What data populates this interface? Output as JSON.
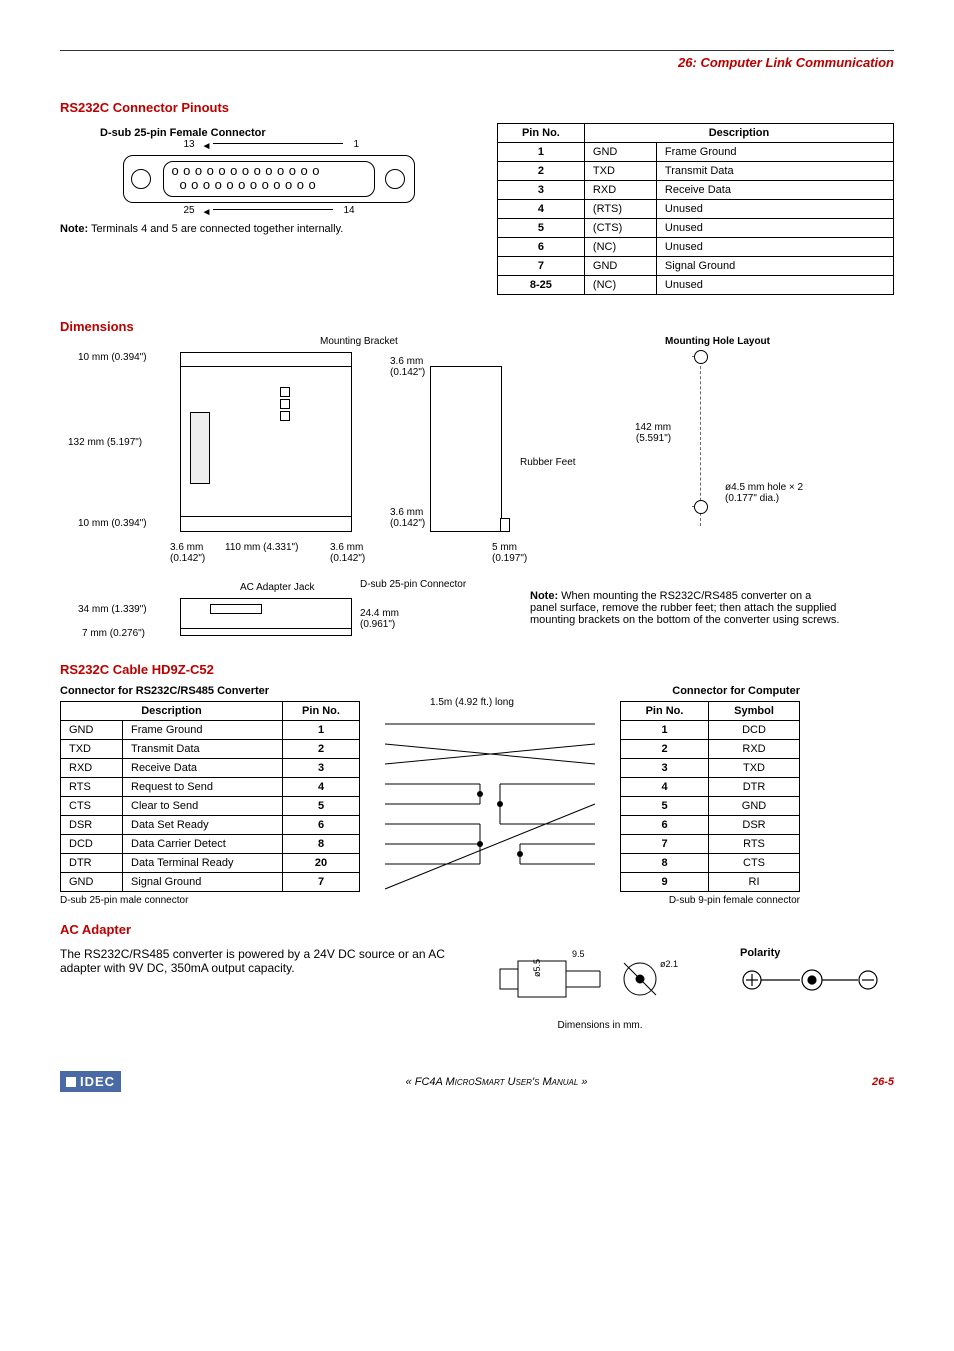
{
  "chapter": {
    "num": "26:",
    "title": "Computer Link Communication"
  },
  "section_pinouts": "RS232C Connector Pinouts",
  "dsub_heading": "D-sub 25-pin Female Connector",
  "dsub_labels": {
    "tl": "13",
    "tr": "1",
    "bl": "25",
    "br": "14"
  },
  "pinout_note": "Terminals 4 and 5 are connected together internally.",
  "pin_table": {
    "headers": [
      "Pin No.",
      "Description"
    ],
    "rows": [
      [
        "1",
        "GND",
        "Frame Ground"
      ],
      [
        "2",
        "TXD",
        "Transmit Data"
      ],
      [
        "3",
        "RXD",
        "Receive Data"
      ],
      [
        "4",
        "(RTS)",
        "Unused"
      ],
      [
        "5",
        "(CTS)",
        "Unused"
      ],
      [
        "6",
        "(NC)",
        "Unused"
      ],
      [
        "7",
        "GND",
        "Signal Ground"
      ],
      [
        "8-25",
        "(NC)",
        "Unused"
      ]
    ]
  },
  "section_dimensions": "Dimensions",
  "dim_labels": {
    "mounting_bracket": "Mounting Bracket",
    "rubber_feet": "Rubber Feet",
    "mounting_hole_layout": "Mounting Hole Layout",
    "h10a": "10 mm (0.394\")",
    "h132": "132 mm (5.197\")",
    "h10b": "10 mm (0.394\")",
    "w36a": "3.6 mm\n(0.142\")",
    "w110": "110 mm (4.331\")",
    "w36b": "3.6 mm\n(0.142\")",
    "t36a": "3.6 mm\n(0.142\")",
    "t36b": "3.6 mm\n(0.142\")",
    "w5": "5 mm\n(0.197\")",
    "mh142": "142 mm\n(5.591\")",
    "mh_hole": "ø4.5 mm hole × 2\n(0.177\" dia.)",
    "ac_jack": "AC Adapter Jack",
    "dsub25c": "D-sub 25-pin Connector",
    "h34": "34 mm (1.339\")",
    "h7": "7 mm (0.276\")",
    "h244": "24.4 mm\n(0.961\")"
  },
  "mounting_note": "When mounting the RS232C/RS485 converter on a panel surface, remove the rubber feet; then attach the supplied mounting brackets on the bottom of the converter using screws.",
  "section_cable": "RS232C Cable HD9Z-C52",
  "cable_left_caption": "Connector for RS232C/RS485 Converter",
  "cable_right_caption": "Connector for Computer",
  "cable_len": "1.5m (4.92 ft.) long",
  "cable_left": {
    "headers": [
      "Description",
      "Pin No."
    ],
    "rows": [
      [
        "GND",
        "Frame Ground",
        "1"
      ],
      [
        "TXD",
        "Transmit Data",
        "2"
      ],
      [
        "RXD",
        "Receive Data",
        "3"
      ],
      [
        "RTS",
        "Request to Send",
        "4"
      ],
      [
        "CTS",
        "Clear to Send",
        "5"
      ],
      [
        "DSR",
        "Data Set Ready",
        "6"
      ],
      [
        "DCD",
        "Data Carrier Detect",
        "8"
      ],
      [
        "DTR",
        "Data Terminal Ready",
        "20"
      ],
      [
        "GND",
        "Signal Ground",
        "7"
      ]
    ],
    "footnote": "D-sub 25-pin male connector"
  },
  "cable_right": {
    "headers": [
      "Pin No.",
      "Symbol"
    ],
    "rows": [
      [
        "1",
        "DCD"
      ],
      [
        "2",
        "RXD"
      ],
      [
        "3",
        "TXD"
      ],
      [
        "4",
        "DTR"
      ],
      [
        "5",
        "GND"
      ],
      [
        "6",
        "DSR"
      ],
      [
        "7",
        "RTS"
      ],
      [
        "8",
        "CTS"
      ],
      [
        "9",
        "RI"
      ]
    ],
    "footnote": "D-sub 9-pin female connector"
  },
  "section_ac": "AC Adapter",
  "ac_text": "The RS232C/RS485 converter is powered by a 24V DC source or an AC adapter with 9V DC, 350mA output capacity.",
  "plug": {
    "w": "9.5",
    "h": "ø5.5",
    "tip": "ø2.1",
    "caption": "Dimensions in mm."
  },
  "polarity_label": "Polarity",
  "footer": {
    "logo": "IDEC",
    "mid": "« FC4A MicroSmart User's Manual »",
    "page": "26-5"
  }
}
